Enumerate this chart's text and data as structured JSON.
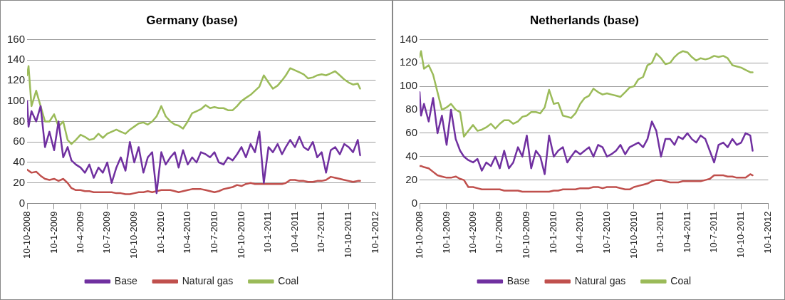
{
  "chart_data": [
    {
      "type": "line",
      "title": "Germany (base)",
      "x": [
        "2008-10-10",
        "2008-10-15",
        "2008-10-25",
        "2008-11-10",
        "2008-11-25",
        "2008-12-10",
        "2008-12-25",
        "2009-01-10",
        "2009-01-25",
        "2009-02-10",
        "2009-02-25",
        "2009-03-10",
        "2009-03-25",
        "2009-04-10",
        "2009-04-25",
        "2009-05-10",
        "2009-05-25",
        "2009-06-10",
        "2009-06-25",
        "2009-07-10",
        "2009-07-25",
        "2009-08-10",
        "2009-08-25",
        "2009-09-10",
        "2009-09-25",
        "2009-10-10",
        "2009-10-25",
        "2009-11-10",
        "2009-11-25",
        "2009-12-10",
        "2009-12-25",
        "2010-01-10",
        "2010-01-25",
        "2010-02-10",
        "2010-02-25",
        "2010-03-10",
        "2010-03-25",
        "2010-04-10",
        "2010-04-25",
        "2010-05-10",
        "2010-05-25",
        "2010-06-10",
        "2010-06-25",
        "2010-07-10",
        "2010-07-25",
        "2010-08-10",
        "2010-08-25",
        "2010-09-10",
        "2010-09-25",
        "2010-10-10",
        "2010-10-25",
        "2010-11-10",
        "2010-11-25",
        "2010-12-10",
        "2010-12-25",
        "2011-01-10",
        "2011-01-25",
        "2011-02-10",
        "2011-02-25",
        "2011-03-10",
        "2011-03-25",
        "2011-04-10",
        "2011-04-25",
        "2011-05-10",
        "2011-05-25",
        "2011-06-10",
        "2011-06-25",
        "2011-07-10",
        "2011-07-25",
        "2011-08-10",
        "2011-08-25",
        "2011-09-10",
        "2011-09-25",
        "2011-10-10",
        "2011-10-25",
        "2011-11-10",
        "2011-11-18"
      ],
      "series": [
        {
          "name": "Base",
          "color": "#7030a0",
          "values": [
            100,
            75,
            90,
            80,
            95,
            55,
            70,
            52,
            80,
            45,
            55,
            42,
            38,
            35,
            30,
            38,
            25,
            35,
            30,
            40,
            20,
            35,
            45,
            32,
            60,
            40,
            55,
            30,
            45,
            50,
            10,
            50,
            38,
            45,
            50,
            35,
            52,
            38,
            45,
            40,
            50,
            48,
            45,
            50,
            40,
            38,
            45,
            42,
            48,
            55,
            45,
            58,
            50,
            70,
            20,
            55,
            50,
            58,
            48,
            55,
            62,
            55,
            65,
            55,
            52,
            60,
            45,
            50,
            30,
            52,
            55,
            48,
            58,
            55,
            50,
            62,
            47
          ]
        },
        {
          "name": "Natural gas",
          "color": "#c0504d",
          "values": [
            33,
            32,
            30,
            31,
            27,
            24,
            23,
            24,
            22,
            24,
            20,
            15,
            13,
            13,
            12,
            12,
            11,
            11,
            11,
            11,
            11,
            10,
            10,
            9,
            9,
            10,
            11,
            11,
            12,
            11,
            12,
            13,
            13,
            13,
            12,
            11,
            12,
            13,
            14,
            14,
            14,
            13,
            12,
            11,
            12,
            14,
            15,
            16,
            18,
            17,
            19,
            20,
            19,
            19,
            19,
            19,
            19,
            19,
            19,
            20,
            23,
            23,
            22,
            22,
            21,
            21,
            22,
            22,
            23,
            26,
            25,
            24,
            23,
            22,
            21,
            22,
            22
          ]
        },
        {
          "name": "Coal",
          "color": "#9bbb59",
          "values": [
            125,
            134,
            95,
            110,
            95,
            80,
            80,
            87,
            75,
            80,
            62,
            58,
            62,
            67,
            65,
            62,
            63,
            68,
            64,
            68,
            70,
            72,
            70,
            68,
            72,
            75,
            78,
            79,
            77,
            80,
            85,
            95,
            85,
            80,
            77,
            76,
            73,
            80,
            88,
            90,
            92,
            96,
            93,
            94,
            93,
            93,
            91,
            91,
            95,
            100,
            103,
            106,
            110,
            114,
            125,
            118,
            112,
            115,
            120,
            125,
            132,
            130,
            128,
            126,
            122,
            123,
            125,
            126,
            125,
            127,
            129,
            125,
            121,
            118,
            116,
            117,
            112
          ]
        }
      ],
      "xlim": [
        "2008-10-10",
        "2012-01-10"
      ],
      "xticks": [
        {
          "value": "2008-10-10",
          "label": "10-10-2008"
        },
        {
          "value": "2009-01-10",
          "label": "10-1-2009"
        },
        {
          "value": "2009-04-10",
          "label": "10-4-2009"
        },
        {
          "value": "2009-07-10",
          "label": "10-7-2009"
        },
        {
          "value": "2009-10-10",
          "label": "10-10-2009"
        },
        {
          "value": "2010-01-10",
          "label": "10-1-2010"
        },
        {
          "value": "2010-04-10",
          "label": "10-4-2010"
        },
        {
          "value": "2010-07-10",
          "label": "10-7-2010"
        },
        {
          "value": "2010-10-10",
          "label": "10-10-2010"
        },
        {
          "value": "2011-01-10",
          "label": "10-1-2011"
        },
        {
          "value": "2011-04-10",
          "label": "10-4-2011"
        },
        {
          "value": "2011-07-10",
          "label": "10-7-2011"
        },
        {
          "value": "2011-10-10",
          "label": "10-10-2011"
        },
        {
          "value": "2012-01-10",
          "label": "10-1-2012"
        }
      ],
      "ylim": [
        0,
        160
      ],
      "yticks": [
        0,
        20,
        40,
        60,
        80,
        100,
        120,
        140,
        160
      ],
      "grid": "y",
      "legend": "bottom",
      "marker": "none",
      "line_style": "solid"
    },
    {
      "type": "line",
      "title": "Netherlands (base)",
      "x": [
        "2008-10-10",
        "2008-10-15",
        "2008-10-25",
        "2008-11-10",
        "2008-11-25",
        "2008-12-10",
        "2008-12-25",
        "2009-01-10",
        "2009-01-25",
        "2009-02-10",
        "2009-02-25",
        "2009-03-10",
        "2009-03-25",
        "2009-04-10",
        "2009-04-25",
        "2009-05-10",
        "2009-05-25",
        "2009-06-10",
        "2009-06-25",
        "2009-07-10",
        "2009-07-25",
        "2009-08-10",
        "2009-08-25",
        "2009-09-10",
        "2009-09-25",
        "2009-10-10",
        "2009-10-25",
        "2009-11-10",
        "2009-11-25",
        "2009-12-10",
        "2009-12-25",
        "2010-01-10",
        "2010-01-25",
        "2010-02-10",
        "2010-02-25",
        "2010-03-10",
        "2010-03-25",
        "2010-04-10",
        "2010-04-25",
        "2010-05-10",
        "2010-05-25",
        "2010-06-10",
        "2010-06-25",
        "2010-07-10",
        "2010-07-25",
        "2010-08-10",
        "2010-08-25",
        "2010-09-10",
        "2010-09-25",
        "2010-10-10",
        "2010-10-25",
        "2010-11-10",
        "2010-11-25",
        "2010-12-10",
        "2010-12-25",
        "2011-01-10",
        "2011-01-25",
        "2011-02-10",
        "2011-02-25",
        "2011-03-10",
        "2011-03-25",
        "2011-04-10",
        "2011-04-25",
        "2011-05-10",
        "2011-05-25",
        "2011-06-10",
        "2011-06-25",
        "2011-07-10",
        "2011-07-25",
        "2011-08-10",
        "2011-08-25",
        "2011-09-10",
        "2011-09-25",
        "2011-10-10",
        "2011-10-25",
        "2011-11-10",
        "2011-11-18"
      ],
      "series": [
        {
          "name": "Base",
          "color": "#7030a0",
          "values": [
            95,
            75,
            85,
            70,
            90,
            60,
            75,
            50,
            80,
            55,
            45,
            40,
            37,
            35,
            38,
            28,
            35,
            32,
            40,
            30,
            45,
            30,
            35,
            48,
            40,
            58,
            30,
            45,
            40,
            25,
            58,
            40,
            45,
            48,
            35,
            40,
            45,
            42,
            45,
            48,
            40,
            50,
            48,
            40,
            42,
            45,
            50,
            42,
            48,
            50,
            52,
            48,
            55,
            70,
            62,
            40,
            55,
            55,
            50,
            57,
            55,
            60,
            55,
            52,
            58,
            55,
            45,
            35,
            50,
            52,
            48,
            55,
            50,
            52,
            60,
            58,
            45
          ]
        },
        {
          "name": "Natural gas",
          "color": "#c0504d",
          "values": [
            32,
            32,
            31,
            30,
            27,
            24,
            23,
            22,
            22,
            23,
            21,
            20,
            14,
            14,
            13,
            12,
            12,
            12,
            12,
            12,
            11,
            11,
            11,
            11,
            10,
            10,
            10,
            10,
            10,
            10,
            10,
            11,
            11,
            12,
            12,
            12,
            12,
            13,
            13,
            13,
            14,
            14,
            13,
            14,
            14,
            14,
            13,
            12,
            12,
            14,
            15,
            16,
            17,
            19,
            20,
            20,
            19,
            18,
            18,
            18,
            19,
            19,
            19,
            19,
            19,
            20,
            21,
            24,
            24,
            24,
            23,
            23,
            22,
            22,
            22,
            25,
            24
          ]
        },
        {
          "name": "Coal",
          "color": "#9bbb59",
          "values": [
            125,
            130,
            115,
            118,
            110,
            95,
            80,
            82,
            85,
            80,
            78,
            57,
            62,
            67,
            62,
            63,
            65,
            68,
            64,
            68,
            71,
            71,
            68,
            70,
            74,
            75,
            78,
            78,
            77,
            82,
            97,
            85,
            86,
            75,
            74,
            73,
            77,
            85,
            90,
            92,
            98,
            95,
            93,
            94,
            93,
            92,
            91,
            95,
            99,
            100,
            106,
            108,
            118,
            120,
            128,
            124,
            119,
            120,
            125,
            128,
            130,
            129,
            125,
            122,
            124,
            123,
            124,
            126,
            125,
            126,
            124,
            118,
            117,
            116,
            114,
            112,
            112
          ]
        }
      ],
      "xlim": [
        "2008-10-10",
        "2012-01-10"
      ],
      "xticks": [
        {
          "value": "2008-10-10",
          "label": "10-10-2008"
        },
        {
          "value": "2009-01-10",
          "label": "10-1-2009"
        },
        {
          "value": "2009-04-10",
          "label": "10-4-2009"
        },
        {
          "value": "2009-07-10",
          "label": "10-7-2009"
        },
        {
          "value": "2009-10-10",
          "label": "10-10-2009"
        },
        {
          "value": "2010-01-10",
          "label": "10-1-2010"
        },
        {
          "value": "2010-04-10",
          "label": "10-4-2010"
        },
        {
          "value": "2010-07-10",
          "label": "10-7-2010"
        },
        {
          "value": "2010-10-10",
          "label": "10-10-2010"
        },
        {
          "value": "2011-01-10",
          "label": "10-1-2011"
        },
        {
          "value": "2011-04-10",
          "label": "10-4-2011"
        },
        {
          "value": "2011-07-10",
          "label": "10-7-2011"
        },
        {
          "value": "2011-10-10",
          "label": "10-10-2011"
        },
        {
          "value": "2012-01-10",
          "label": "10-1-2012"
        }
      ],
      "ylim": [
        0,
        140
      ],
      "yticks": [
        0,
        20,
        40,
        60,
        80,
        100,
        120,
        140
      ],
      "grid": "y",
      "legend": "bottom",
      "marker": "none",
      "line_style": "solid"
    }
  ]
}
